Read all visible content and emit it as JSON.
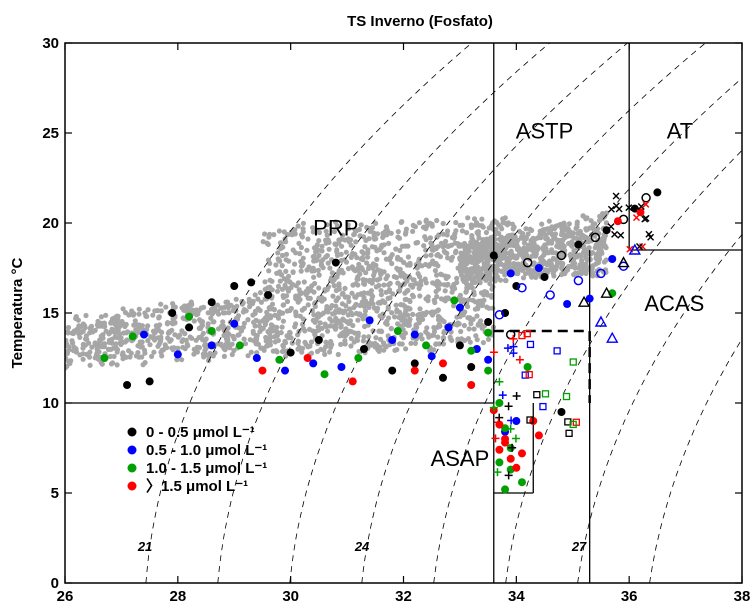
{
  "chart_data": {
    "type": "scatter",
    "title": "TS Inverno (Fosfato)",
    "xlabel": "",
    "ylabel": "Temperatura °C",
    "xlim": [
      26,
      38
    ],
    "ylim": [
      0,
      30
    ],
    "xticks": [
      26,
      28,
      30,
      32,
      34,
      36,
      38
    ],
    "yticks": [
      0,
      5,
      10,
      15,
      20,
      25,
      30
    ],
    "grid": false,
    "legend_position": "lower-left",
    "colors": {
      "background_cloud": "#a6a6a6",
      "series": [
        "#000000",
        "#0000ff",
        "#00a000",
        "#ff0000"
      ],
      "isopycnal": "#000000",
      "region_lines": "#000000"
    },
    "series": [
      {
        "name": "0 - 0.5 μmol L⁻¹",
        "color": "#000000",
        "points": [
          [
            27.1,
            11.0
          ],
          [
            27.5,
            11.2
          ],
          [
            27.9,
            15.0
          ],
          [
            28.2,
            14.2
          ],
          [
            28.6,
            15.6
          ],
          [
            29.0,
            16.5
          ],
          [
            29.3,
            16.7
          ],
          [
            29.6,
            16.0
          ],
          [
            30.0,
            12.8
          ],
          [
            30.5,
            13.5
          ],
          [
            30.8,
            17.8
          ],
          [
            31.3,
            13.0
          ],
          [
            31.8,
            11.8
          ],
          [
            32.2,
            12.2
          ],
          [
            32.7,
            11.4
          ],
          [
            33.0,
            13.2
          ],
          [
            33.2,
            12.0
          ],
          [
            33.5,
            14.5
          ],
          [
            33.6,
            18.2
          ],
          [
            33.8,
            15.0
          ],
          [
            33.9,
            13.8
          ],
          [
            34.0,
            16.5
          ],
          [
            34.2,
            17.8
          ],
          [
            34.5,
            17.0
          ],
          [
            34.8,
            18.2
          ],
          [
            35.1,
            18.8
          ],
          [
            35.4,
            19.2
          ],
          [
            35.6,
            19.6
          ],
          [
            35.9,
            20.2
          ],
          [
            36.1,
            20.8
          ],
          [
            36.3,
            21.4
          ],
          [
            36.5,
            21.7
          ],
          [
            34.8,
            9.5
          ]
        ]
      },
      {
        "name": "0.5 - 1.0 μmol L⁻¹",
        "color": "#0000ff",
        "points": [
          [
            27.4,
            13.8
          ],
          [
            28.0,
            12.7
          ],
          [
            28.6,
            13.2
          ],
          [
            29.0,
            14.4
          ],
          [
            29.4,
            12.5
          ],
          [
            29.9,
            11.8
          ],
          [
            30.4,
            12.2
          ],
          [
            30.9,
            12.0
          ],
          [
            31.4,
            14.6
          ],
          [
            31.8,
            13.5
          ],
          [
            32.2,
            13.8
          ],
          [
            32.5,
            12.6
          ],
          [
            32.8,
            14.2
          ],
          [
            33.0,
            15.3
          ],
          [
            33.3,
            13.0
          ],
          [
            33.5,
            12.4
          ],
          [
            33.7,
            14.9
          ],
          [
            33.9,
            17.2
          ],
          [
            34.1,
            16.4
          ],
          [
            34.4,
            17.5
          ],
          [
            34.6,
            16.0
          ],
          [
            34.9,
            15.5
          ],
          [
            35.1,
            16.8
          ],
          [
            35.3,
            15.8
          ],
          [
            35.5,
            17.2
          ],
          [
            35.7,
            18.0
          ],
          [
            35.9,
            17.6
          ],
          [
            34.0,
            9.0
          ],
          [
            33.8,
            8.4
          ]
        ]
      },
      {
        "name": "1.0 - 1.5 μmol L⁻¹",
        "color": "#00a000",
        "points": [
          [
            26.7,
            12.5
          ],
          [
            27.2,
            13.7
          ],
          [
            28.2,
            14.8
          ],
          [
            28.6,
            14.0
          ],
          [
            29.1,
            13.2
          ],
          [
            29.8,
            12.4
          ],
          [
            30.6,
            11.6
          ],
          [
            31.2,
            12.5
          ],
          [
            31.9,
            14.0
          ],
          [
            32.4,
            13.2
          ],
          [
            32.9,
            15.7
          ],
          [
            33.2,
            12.9
          ],
          [
            33.5,
            11.8
          ],
          [
            33.7,
            10.0
          ],
          [
            33.8,
            8.6
          ],
          [
            33.9,
            7.5
          ],
          [
            33.7,
            6.7
          ],
          [
            33.9,
            6.3
          ],
          [
            34.1,
            5.6
          ],
          [
            33.8,
            5.2
          ],
          [
            33.5,
            13.9
          ],
          [
            34.2,
            12.0
          ],
          [
            35.7,
            16.1
          ]
        ]
      },
      {
        "name": "〉1.5 μmol L⁻¹",
        "color": "#ff0000",
        "points": [
          [
            29.5,
            11.8
          ],
          [
            30.3,
            12.5
          ],
          [
            31.1,
            11.2
          ],
          [
            32.2,
            11.8
          ],
          [
            32.7,
            12.2
          ],
          [
            33.2,
            11.0
          ],
          [
            33.6,
            9.6
          ],
          [
            33.7,
            8.8
          ],
          [
            33.8,
            8.0
          ],
          [
            33.7,
            7.4
          ],
          [
            33.9,
            6.9
          ],
          [
            34.0,
            6.4
          ],
          [
            33.8,
            7.8
          ],
          [
            34.1,
            7.2
          ],
          [
            34.3,
            9.0
          ],
          [
            34.4,
            8.2
          ],
          [
            35.8,
            20.1
          ],
          [
            36.2,
            20.6
          ]
        ]
      }
    ],
    "isopycnals": [
      {
        "sigma": 21,
        "label": "21"
      },
      {
        "sigma": 22,
        "label": ""
      },
      {
        "sigma": 23,
        "label": ""
      },
      {
        "sigma": 24,
        "label": "24"
      },
      {
        "sigma": 25,
        "label": ""
      },
      {
        "sigma": 26,
        "label": ""
      },
      {
        "sigma": 27,
        "label": "27"
      },
      {
        "sigma": 28,
        "label": ""
      }
    ],
    "regions": [
      {
        "label": "PRP",
        "x": 30.8,
        "y": 19.3
      },
      {
        "label": "ASTP",
        "x": 34.5,
        "y": 24.7
      },
      {
        "label": "AT",
        "x": 36.9,
        "y": 24.7
      },
      {
        "label": "ACAS",
        "x": 36.8,
        "y": 15.1
      },
      {
        "label": "ASAP",
        "x": 33.0,
        "y": 6.5
      }
    ],
    "region_lines": [
      [
        [
          26,
          10
        ],
        [
          33.6,
          10
        ]
      ],
      [
        [
          33.6,
          0
        ],
        [
          33.6,
          30
        ]
      ],
      [
        [
          36,
          18.5
        ],
        [
          36,
          30
        ]
      ],
      [
        [
          36,
          18.5
        ],
        [
          38,
          18.5
        ]
      ],
      [
        [
          35.3,
          0
        ],
        [
          35.3,
          18.5
        ]
      ],
      [
        [
          33.6,
          5
        ],
        [
          34.3,
          5
        ]
      ],
      [
        [
          34.3,
          5
        ],
        [
          34.3,
          10
        ]
      ]
    ],
    "dashed_box": [
      [
        33.6,
        14
      ],
      [
        35.3,
        14
      ],
      [
        35.3,
        10
      ]
    ]
  }
}
